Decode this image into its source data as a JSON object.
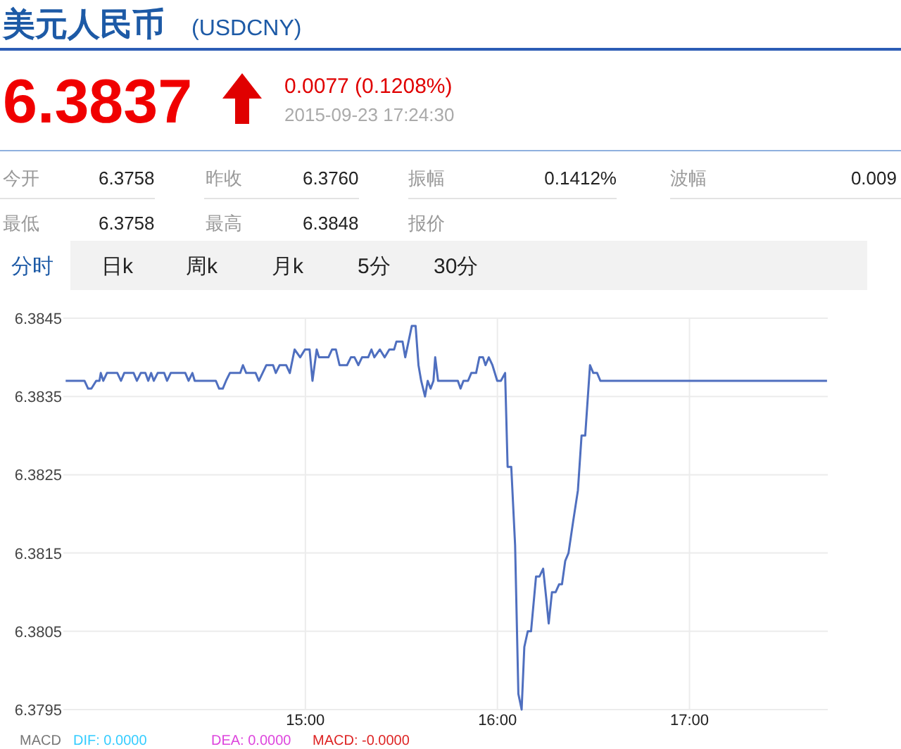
{
  "chart_data": [
    {
      "type": "other",
      "title": "美元人民币",
      "subtitle": "(USDCNY)",
      "annotations": [
        "6.3837",
        "0.0077 (0.1208%)",
        "2015-09-23 17:24:30",
        "今开",
        "6.3758",
        "昨收",
        "6.3760",
        "振幅",
        "0.1412%",
        "波幅",
        "0.009",
        "最低",
        "6.3758",
        "最高",
        "6.3848",
        "报价",
        "分时",
        "日k",
        "周k",
        "月k",
        "5分",
        "30分"
      ]
    },
    {
      "type": "line",
      "color": "#4f6fbf",
      "grid": true,
      "xlim": [
        13.74,
        17.72
      ],
      "xticks": [
        {
          "value": 15,
          "label": "15:00"
        },
        {
          "value": 16,
          "label": "16:00"
        },
        {
          "value": 17,
          "label": "17:00"
        }
      ],
      "ylim": [
        6.3795,
        6.3845
      ],
      "yticks": [
        6.3795,
        6.3805,
        6.3815,
        6.3825,
        6.3835,
        6.3845
      ],
      "x": [
        13.752,
        13.85,
        13.869,
        13.886,
        13.911,
        13.928,
        13.935,
        13.948,
        13.967,
        14.021,
        14.04,
        14.057,
        14.106,
        14.123,
        14.143,
        14.167,
        14.182,
        14.197,
        14.211,
        14.231,
        14.265,
        14.28,
        14.299,
        14.375,
        14.392,
        14.412,
        14.424,
        14.534,
        14.551,
        14.57,
        14.587,
        14.607,
        14.661,
        14.675,
        14.692,
        14.741,
        14.758,
        14.797,
        14.832,
        14.846,
        14.866,
        14.9,
        14.919,
        14.944,
        14.973,
        14.998,
        15.022,
        15.037,
        15.059,
        15.071,
        15.12,
        15.139,
        15.159,
        15.178,
        15.217,
        15.237,
        15.256,
        15.276,
        15.295,
        15.327,
        15.344,
        15.359,
        15.388,
        15.413,
        15.437,
        15.462,
        15.474,
        15.506,
        15.52,
        15.554,
        15.574,
        15.589,
        15.603,
        15.623,
        15.637,
        15.652,
        15.667,
        15.676,
        15.691,
        15.794,
        15.808,
        15.823,
        15.847,
        15.864,
        15.889,
        15.906,
        15.925,
        15.938,
        15.955,
        15.974,
        15.999,
        16.018,
        16.04,
        16.053,
        16.072,
        16.092,
        16.109,
        16.126,
        16.14,
        16.158,
        16.175,
        16.201,
        16.219,
        16.238,
        16.255,
        16.267,
        16.284,
        16.303,
        16.321,
        16.336,
        16.353,
        16.37,
        16.394,
        16.419,
        16.438,
        16.457,
        16.482,
        16.499,
        16.519,
        16.536,
        17.716
      ],
      "values": [
        6.3837,
        6.3837,
        6.3836,
        6.3836,
        6.3837,
        6.3837,
        6.3838,
        6.3837,
        6.3838,
        6.3838,
        6.3837,
        6.3838,
        6.3838,
        6.3837,
        6.3838,
        6.3838,
        6.3837,
        6.3838,
        6.3837,
        6.3838,
        6.3838,
        6.3837,
        6.3838,
        6.3838,
        6.3837,
        6.3838,
        6.3837,
        6.3837,
        6.3836,
        6.3836,
        6.3837,
        6.3838,
        6.3838,
        6.3839,
        6.3838,
        6.3838,
        6.3837,
        6.3839,
        6.3839,
        6.3838,
        6.3839,
        6.3839,
        6.3838,
        6.3841,
        6.384,
        6.3841,
        6.3841,
        6.3837,
        6.3841,
        6.384,
        6.384,
        6.3841,
        6.3841,
        6.3839,
        6.3839,
        6.384,
        6.384,
        6.3839,
        6.384,
        6.384,
        6.3841,
        6.384,
        6.3841,
        6.384,
        6.3841,
        6.3841,
        6.3842,
        6.3842,
        6.384,
        6.3844,
        6.3844,
        6.3839,
        6.3837,
        6.3835,
        6.3837,
        6.3836,
        6.3837,
        6.384,
        6.3837,
        6.3837,
        6.3836,
        6.3837,
        6.3837,
        6.3838,
        6.3838,
        6.384,
        6.384,
        6.3839,
        6.384,
        6.3839,
        6.3837,
        6.3837,
        6.3838,
        6.3826,
        6.3826,
        6.3816,
        6.3797,
        6.3795,
        6.3803,
        6.3805,
        6.3805,
        6.3812,
        6.3812,
        6.3813,
        6.3809,
        6.3806,
        6.381,
        6.381,
        6.3811,
        6.3811,
        6.3814,
        6.3815,
        6.3819,
        6.3823,
        6.383,
        6.383,
        6.3839,
        6.3838,
        6.3838,
        6.3837,
        6.3837
      ],
      "annotations": [
        "MACD",
        "DIF: 0.0000",
        "DEA: 0.0000",
        "MACD: -0.0000"
      ]
    }
  ]
}
